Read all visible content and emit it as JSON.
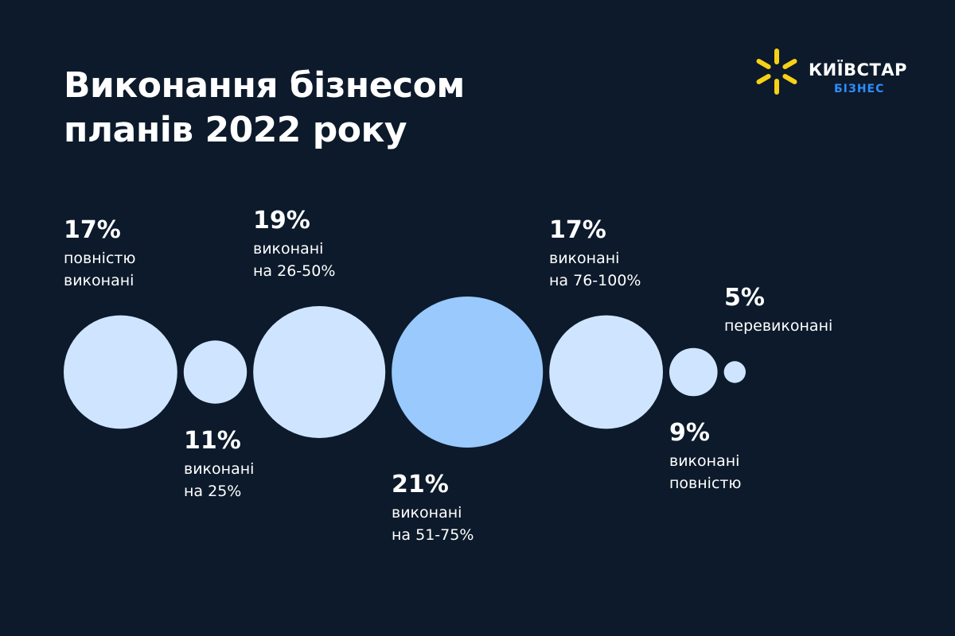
{
  "title_lines": [
    "Виконання бізнесом",
    "планів 2022 року"
  ],
  "logo": {
    "name": "КИЇВСТАР",
    "sub": "БІЗНЕС",
    "name_color": "#ffffff",
    "sub_color": "#2f8cff",
    "star_color": "#f7d117"
  },
  "colors": {
    "background": "#0c1a2b",
    "bubble": "#cfe5ff",
    "bubble_highlight": "#99c9fd"
  },
  "chart_data": {
    "type": "bubble",
    "title": "Виконання бізнесом планів 2022 року",
    "unit": "%",
    "categories": [
      "повністю виконані",
      "виконані на 25%",
      "виконані на 26-50%",
      "виконані на 51-75%",
      "виконані на 76-100%",
      "виконані повністю",
      "перевиконані"
    ],
    "values": [
      17,
      11,
      19,
      21,
      17,
      9,
      5
    ],
    "highlight_index": 3,
    "labels": [
      {
        "pct": "17%",
        "lines": [
          "повністю",
          "виконані"
        ],
        "position": "above"
      },
      {
        "pct": "11%",
        "lines": [
          "виконані",
          "на 25%"
        ],
        "position": "below"
      },
      {
        "pct": "19%",
        "lines": [
          "виконані",
          "на 26-50%"
        ],
        "position": "above"
      },
      {
        "pct": "21%",
        "lines": [
          "виконані",
          "на 51-75%"
        ],
        "position": "below"
      },
      {
        "pct": "17%",
        "lines": [
          "виконані",
          "на 76-100%"
        ],
        "position": "above"
      },
      {
        "pct": "9%",
        "lines": [
          "виконані",
          "повністю"
        ],
        "position": "below"
      },
      {
        "pct": "5%",
        "lines": [
          "перевиконані"
        ],
        "position": "above"
      }
    ]
  }
}
